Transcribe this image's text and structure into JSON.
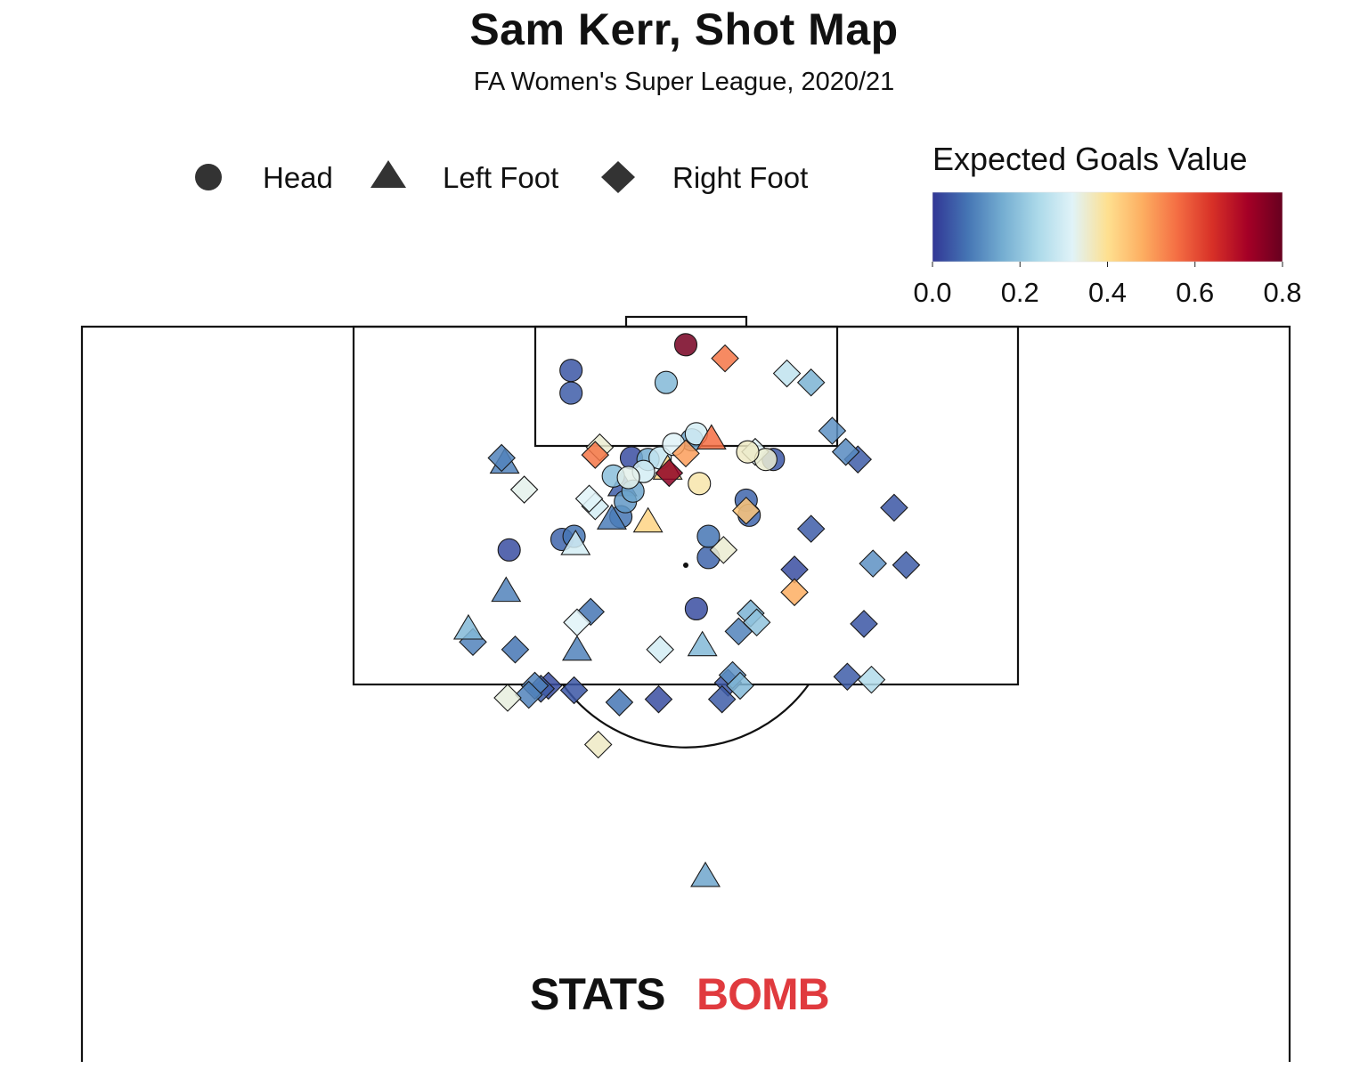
{
  "chart_data": {
    "type": "scatter",
    "title": "Sam Kerr, Shot Map",
    "subtitle": "FA Women's Super League, 2020/21",
    "legend": {
      "placement": "top-left",
      "entries": [
        {
          "label": "Head",
          "marker": "circle"
        },
        {
          "label": "Left Foot",
          "marker": "triangle"
        },
        {
          "label": "Right Foot",
          "marker": "diamond"
        }
      ]
    },
    "colorbar": {
      "title": "Expected Goals Value",
      "range": [
        0.0,
        0.8
      ],
      "ticks": [
        "0.0",
        "0.2",
        "0.4",
        "0.6",
        "0.8"
      ],
      "colormap": [
        "#313695",
        "#4575b4",
        "#74add1",
        "#abd9e9",
        "#e0f3f8",
        "#fee090",
        "#fdae61",
        "#f46d43",
        "#d73027",
        "#a50026",
        "#67001f"
      ]
    },
    "axes": {
      "x_range": [
        0,
        80
      ],
      "y_range": [
        60,
        120
      ],
      "orientation": "vertical half-pitch, goal at top"
    },
    "shots": [
      {
        "x": 40.0,
        "y": 118.8,
        "body_part": "head",
        "xg": 0.78
      },
      {
        "x": 42.6,
        "y": 117.9,
        "body_part": "right",
        "xg": 0.55
      },
      {
        "x": 32.4,
        "y": 117.1,
        "body_part": "head",
        "xg": 0.04
      },
      {
        "x": 32.4,
        "y": 115.6,
        "body_part": "head",
        "xg": 0.05
      },
      {
        "x": 38.7,
        "y": 116.3,
        "body_part": "head",
        "xg": 0.18
      },
      {
        "x": 46.7,
        "y": 116.9,
        "body_part": "right",
        "xg": 0.27
      },
      {
        "x": 48.3,
        "y": 116.3,
        "body_part": "right",
        "xg": 0.17
      },
      {
        "x": 49.7,
        "y": 113.1,
        "body_part": "right",
        "xg": 0.12
      },
      {
        "x": 50.6,
        "y": 111.7,
        "body_part": "right",
        "xg": 0.11
      },
      {
        "x": 51.4,
        "y": 111.2,
        "body_part": "right",
        "xg": 0.05
      },
      {
        "x": 34.3,
        "y": 112.0,
        "body_part": "right",
        "xg": 0.35
      },
      {
        "x": 34.0,
        "y": 111.5,
        "body_part": "right",
        "xg": 0.55
      },
      {
        "x": 36.4,
        "y": 111.3,
        "body_part": "head",
        "xg": 0.03
      },
      {
        "x": 40.7,
        "y": 112.9,
        "body_part": "head",
        "xg": 0.3
      },
      {
        "x": 40.4,
        "y": 112.5,
        "body_part": "head",
        "xg": 0.15
      },
      {
        "x": 41.7,
        "y": 112.6,
        "body_part": "left",
        "xg": 0.56
      },
      {
        "x": 40.0,
        "y": 111.6,
        "body_part": "right",
        "xg": 0.5
      },
      {
        "x": 39.2,
        "y": 112.2,
        "body_part": "head",
        "xg": 0.32
      },
      {
        "x": 38.3,
        "y": 111.3,
        "body_part": "head",
        "xg": 0.28
      },
      {
        "x": 37.5,
        "y": 111.2,
        "body_part": "head",
        "xg": 0.16
      },
      {
        "x": 38.8,
        "y": 110.6,
        "body_part": "left",
        "xg": 0.42
      },
      {
        "x": 38.9,
        "y": 110.3,
        "body_part": "right",
        "xg": 0.75
      },
      {
        "x": 37.2,
        "y": 110.4,
        "body_part": "head",
        "xg": 0.3
      },
      {
        "x": 35.2,
        "y": 110.1,
        "body_part": "head",
        "xg": 0.19
      },
      {
        "x": 36.2,
        "y": 110.0,
        "body_part": "head",
        "xg": 0.33
      },
      {
        "x": 35.8,
        "y": 109.5,
        "body_part": "left",
        "xg": 0.05
      },
      {
        "x": 36.5,
        "y": 109.1,
        "body_part": "head",
        "xg": 0.15
      },
      {
        "x": 36.0,
        "y": 108.4,
        "body_part": "head",
        "xg": 0.13
      },
      {
        "x": 33.6,
        "y": 108.6,
        "body_part": "right",
        "xg": 0.32
      },
      {
        "x": 34.0,
        "y": 108.1,
        "body_part": "right",
        "xg": 0.3
      },
      {
        "x": 35.7,
        "y": 107.4,
        "body_part": "head",
        "xg": 0.08
      },
      {
        "x": 35.1,
        "y": 107.3,
        "body_part": "left",
        "xg": 0.09
      },
      {
        "x": 37.5,
        "y": 107.1,
        "body_part": "left",
        "xg": 0.42
      },
      {
        "x": 44.1,
        "y": 111.7,
        "body_part": "head",
        "xg": 0.36
      },
      {
        "x": 45.8,
        "y": 111.2,
        "body_part": "head",
        "xg": 0.04
      },
      {
        "x": 45.3,
        "y": 111.2,
        "body_part": "head",
        "xg": 0.35
      },
      {
        "x": 44.6,
        "y": 111.7,
        "body_part": "right",
        "xg": 0.32
      },
      {
        "x": 40.9,
        "y": 109.6,
        "body_part": "head",
        "xg": 0.38
      },
      {
        "x": 44.0,
        "y": 108.5,
        "body_part": "head",
        "xg": 0.06
      },
      {
        "x": 44.2,
        "y": 107.5,
        "body_part": "head",
        "xg": 0.06
      },
      {
        "x": 44.0,
        "y": 107.8,
        "body_part": "right",
        "xg": 0.44
      },
      {
        "x": 28.0,
        "y": 111.0,
        "body_part": "left",
        "xg": 0.1
      },
      {
        "x": 27.8,
        "y": 111.3,
        "body_part": "right",
        "xg": 0.1
      },
      {
        "x": 29.3,
        "y": 109.2,
        "body_part": "right",
        "xg": 0.33
      },
      {
        "x": 31.8,
        "y": 105.9,
        "body_part": "head",
        "xg": 0.06
      },
      {
        "x": 32.6,
        "y": 106.1,
        "body_part": "head",
        "xg": 0.08
      },
      {
        "x": 32.7,
        "y": 105.6,
        "body_part": "left",
        "xg": 0.3
      },
      {
        "x": 28.3,
        "y": 105.2,
        "body_part": "head",
        "xg": 0.03
      },
      {
        "x": 41.5,
        "y": 106.1,
        "body_part": "head",
        "xg": 0.08
      },
      {
        "x": 41.5,
        "y": 104.7,
        "body_part": "head",
        "xg": 0.06
      },
      {
        "x": 42.5,
        "y": 105.2,
        "body_part": "right",
        "xg": 0.35
      },
      {
        "x": 48.3,
        "y": 106.6,
        "body_part": "right",
        "xg": 0.05
      },
      {
        "x": 53.8,
        "y": 108.0,
        "body_part": "right",
        "xg": 0.04
      },
      {
        "x": 47.2,
        "y": 103.9,
        "body_part": "right",
        "xg": 0.03
      },
      {
        "x": 52.4,
        "y": 104.3,
        "body_part": "right",
        "xg": 0.12
      },
      {
        "x": 54.6,
        "y": 104.2,
        "body_part": "right",
        "xg": 0.05
      },
      {
        "x": 47.2,
        "y": 102.4,
        "body_part": "right",
        "xg": 0.48
      },
      {
        "x": 28.1,
        "y": 102.5,
        "body_part": "left",
        "xg": 0.1
      },
      {
        "x": 40.7,
        "y": 101.3,
        "body_part": "head",
        "xg": 0.03
      },
      {
        "x": 25.6,
        "y": 100.0,
        "body_part": "left",
        "xg": 0.18
      },
      {
        "x": 25.9,
        "y": 99.1,
        "body_part": "right",
        "xg": 0.1
      },
      {
        "x": 28.7,
        "y": 98.6,
        "body_part": "right",
        "xg": 0.08
      },
      {
        "x": 33.7,
        "y": 101.1,
        "body_part": "right",
        "xg": 0.08
      },
      {
        "x": 32.8,
        "y": 100.4,
        "body_part": "right",
        "xg": 0.32
      },
      {
        "x": 32.8,
        "y": 98.6,
        "body_part": "left",
        "xg": 0.1
      },
      {
        "x": 38.3,
        "y": 98.6,
        "body_part": "right",
        "xg": 0.3
      },
      {
        "x": 41.1,
        "y": 98.9,
        "body_part": "left",
        "xg": 0.18
      },
      {
        "x": 43.5,
        "y": 99.8,
        "body_part": "right",
        "xg": 0.1
      },
      {
        "x": 44.3,
        "y": 101.0,
        "body_part": "right",
        "xg": 0.17
      },
      {
        "x": 44.7,
        "y": 100.4,
        "body_part": "right",
        "xg": 0.2
      },
      {
        "x": 51.8,
        "y": 100.3,
        "body_part": "right",
        "xg": 0.04
      },
      {
        "x": 50.7,
        "y": 96.8,
        "body_part": "right",
        "xg": 0.05
      },
      {
        "x": 52.3,
        "y": 96.6,
        "body_part": "right",
        "xg": 0.25
      },
      {
        "x": 43.1,
        "y": 96.9,
        "body_part": "right",
        "xg": 0.12
      },
      {
        "x": 42.8,
        "y": 96.4,
        "body_part": "right",
        "xg": 0.04
      },
      {
        "x": 43.6,
        "y": 96.2,
        "body_part": "right",
        "xg": 0.18
      },
      {
        "x": 30.0,
        "y": 96.2,
        "body_part": "right",
        "xg": 0.1
      },
      {
        "x": 30.9,
        "y": 96.2,
        "body_part": "right",
        "xg": 0.03
      },
      {
        "x": 32.6,
        "y": 95.9,
        "body_part": "right",
        "xg": 0.04
      },
      {
        "x": 28.2,
        "y": 95.4,
        "body_part": "right",
        "xg": 0.34
      },
      {
        "x": 29.6,
        "y": 95.6,
        "body_part": "right",
        "xg": 0.1
      },
      {
        "x": 30.4,
        "y": 96.0,
        "body_part": "right",
        "xg": 0.05
      },
      {
        "x": 35.6,
        "y": 95.1,
        "body_part": "right",
        "xg": 0.08
      },
      {
        "x": 38.2,
        "y": 95.3,
        "body_part": "right",
        "xg": 0.03
      },
      {
        "x": 42.4,
        "y": 95.3,
        "body_part": "right",
        "xg": 0.05
      },
      {
        "x": 34.2,
        "y": 92.3,
        "body_part": "right",
        "xg": 0.36
      },
      {
        "x": 41.3,
        "y": 83.6,
        "body_part": "left",
        "xg": 0.15
      }
    ]
  },
  "branding": {
    "logo_text_black": "STATS",
    "logo_text_red": "BOMB"
  }
}
